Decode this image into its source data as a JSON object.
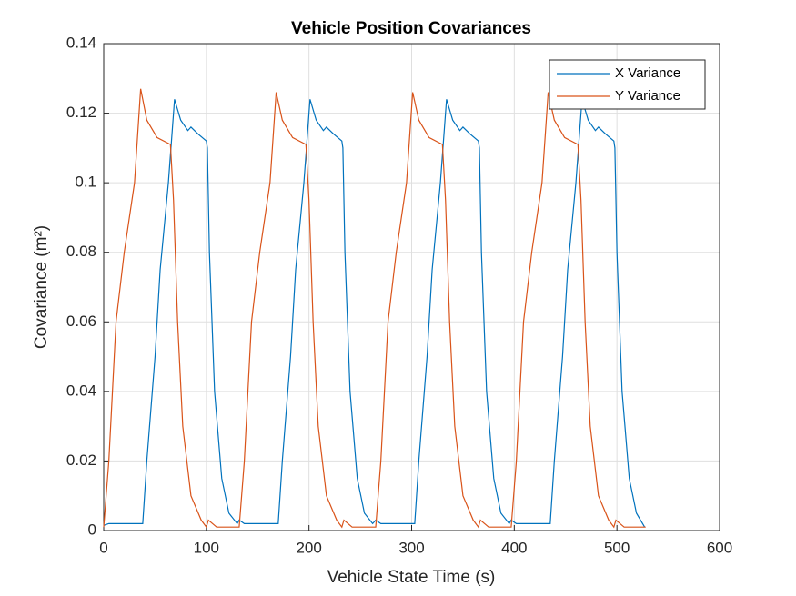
{
  "chart_data": {
    "type": "line",
    "title": "Vehicle Position Covariances",
    "xlabel": "Vehicle State Time (s)",
    "ylabel": "Covariance (m²)",
    "xlim": [
      0,
      600
    ],
    "xticks": [
      0,
      100,
      200,
      300,
      400,
      500,
      600
    ],
    "ylim": [
      0,
      0.14
    ],
    "yticks": [
      0,
      0.02,
      0.04,
      0.06,
      0.08,
      0.1,
      0.12,
      0.14
    ],
    "grid": true,
    "legend": "top-right",
    "series": [
      {
        "name": "X Variance",
        "color": "#0072BD",
        "x": [
          0,
          5,
          38,
          42,
          50,
          55,
          63,
          69,
          75,
          82,
          85,
          92,
          100,
          101,
          103,
          108,
          115,
          122,
          130,
          132,
          137,
          170,
          174,
          182,
          187,
          195,
          201,
          207,
          214,
          217,
          224,
          232,
          233,
          235,
          240,
          247,
          254,
          262,
          265,
          270,
          303,
          307,
          315,
          320,
          328,
          334,
          340,
          347,
          350,
          357,
          365,
          366,
          368,
          373,
          380,
          387,
          395,
          397,
          402,
          435,
          439,
          447,
          452,
          460,
          466,
          472,
          479,
          482,
          489,
          497,
          498,
          500,
          505,
          512,
          519,
          527
        ],
        "values": [
          0.0015,
          0.002,
          0.002,
          0.02,
          0.05,
          0.075,
          0.1,
          0.124,
          0.118,
          0.115,
          0.116,
          0.114,
          0.112,
          0.11,
          0.08,
          0.04,
          0.015,
          0.005,
          0.002,
          0.003,
          0.002,
          0.002,
          0.02,
          0.05,
          0.075,
          0.1,
          0.124,
          0.118,
          0.115,
          0.116,
          0.114,
          0.112,
          0.11,
          0.08,
          0.04,
          0.015,
          0.005,
          0.002,
          0.003,
          0.002,
          0.002,
          0.02,
          0.05,
          0.075,
          0.1,
          0.124,
          0.118,
          0.115,
          0.116,
          0.114,
          0.112,
          0.11,
          0.08,
          0.04,
          0.015,
          0.005,
          0.002,
          0.003,
          0.002,
          0.002,
          0.02,
          0.05,
          0.075,
          0.1,
          0.124,
          0.118,
          0.115,
          0.116,
          0.114,
          0.112,
          0.11,
          0.08,
          0.04,
          0.015,
          0.005,
          0.001
        ]
      },
      {
        "name": "Y Variance",
        "color": "#D95319",
        "x": [
          0,
          5,
          12,
          20,
          30,
          36,
          42,
          52,
          65,
          68,
          72,
          77,
          85,
          95,
          100,
          102,
          110,
          131,
          132,
          137,
          144,
          152,
          162,
          168,
          174,
          184,
          197,
          200,
          204,
          209,
          217,
          227,
          232,
          234,
          242,
          263,
          265,
          270,
          277,
          285,
          295,
          301,
          307,
          317,
          330,
          333,
          337,
          342,
          350,
          360,
          365,
          367,
          375,
          396,
          397,
          402,
          409,
          417,
          427,
          433,
          439,
          449,
          462,
          465,
          469,
          474,
          482,
          492,
          497,
          499,
          507,
          528
        ],
        "values": [
          0.001,
          0.02,
          0.06,
          0.08,
          0.1,
          0.127,
          0.118,
          0.113,
          0.111,
          0.095,
          0.06,
          0.03,
          0.01,
          0.003,
          0.001,
          0.003,
          0.001,
          0.001,
          0.001,
          0.02,
          0.06,
          0.08,
          0.1,
          0.126,
          0.118,
          0.113,
          0.111,
          0.095,
          0.06,
          0.03,
          0.01,
          0.003,
          0.001,
          0.003,
          0.001,
          0.001,
          0.001,
          0.02,
          0.06,
          0.08,
          0.1,
          0.126,
          0.118,
          0.113,
          0.111,
          0.095,
          0.06,
          0.03,
          0.01,
          0.003,
          0.001,
          0.003,
          0.001,
          0.001,
          0.001,
          0.02,
          0.06,
          0.08,
          0.1,
          0.126,
          0.118,
          0.113,
          0.111,
          0.095,
          0.06,
          0.03,
          0.01,
          0.003,
          0.001,
          0.003,
          0.001,
          0.001
        ]
      }
    ]
  }
}
